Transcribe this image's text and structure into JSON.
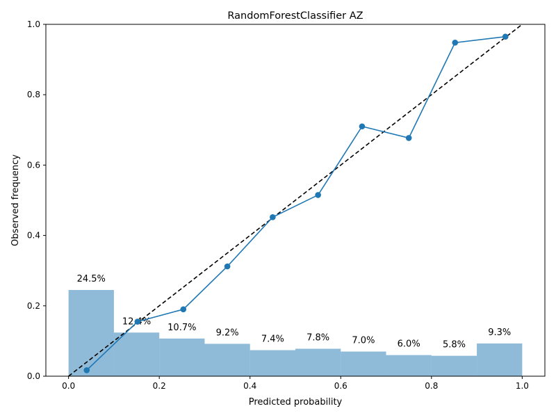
{
  "chart_data": {
    "type": "line",
    "title": "RandomForestClassifier AZ",
    "xlabel": "Predicted probability",
    "ylabel": "Observed frequency",
    "xlim": [
      -0.05,
      1.05
    ],
    "ylim": [
      0,
      1
    ],
    "xticks": [
      0.0,
      0.2,
      0.4,
      0.6,
      0.8,
      1.0
    ],
    "xtick_labels": [
      "0.0",
      "0.2",
      "0.4",
      "0.6",
      "0.8",
      "1.0"
    ],
    "yticks": [
      0.0,
      0.2,
      0.4,
      0.6,
      0.8,
      1.0
    ],
    "ytick_labels": [
      "0.0",
      "0.2",
      "0.4",
      "0.6",
      "0.8",
      "1.0"
    ],
    "grid": false,
    "calibration_curve": {
      "x": [
        0.04,
        0.152,
        0.253,
        0.35,
        0.45,
        0.55,
        0.647,
        0.75,
        0.852,
        0.963
      ],
      "y": [
        0.017,
        0.155,
        0.19,
        0.312,
        0.452,
        0.515,
        0.71,
        0.677,
        0.948,
        0.965
      ],
      "color": "#1f77b4"
    },
    "perfect_calibration_line": {
      "x": [
        0,
        1
      ],
      "y": [
        0,
        1
      ],
      "color": "#000000",
      "style": "dashed"
    },
    "histogram": {
      "bin_edges": [
        0.0,
        0.1,
        0.2,
        0.3,
        0.4,
        0.5,
        0.6,
        0.7,
        0.8,
        0.9,
        1.0
      ],
      "values": [
        0.245,
        0.124,
        0.107,
        0.092,
        0.074,
        0.078,
        0.07,
        0.06,
        0.058,
        0.093
      ],
      "labels": [
        "24.5%",
        "12.4%",
        "10.7%",
        "9.2%",
        "7.4%",
        "7.8%",
        "7.0%",
        "6.0%",
        "5.8%",
        "9.3%"
      ],
      "color": "#1f77b4",
      "opacity": 0.5
    }
  }
}
